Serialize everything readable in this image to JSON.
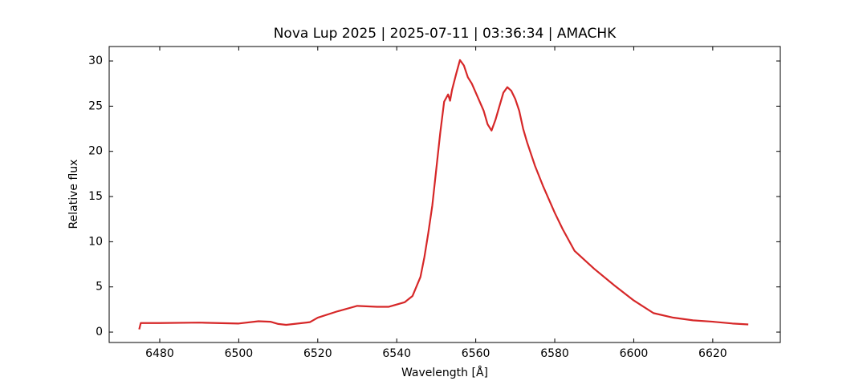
{
  "chart_data": {
    "type": "line",
    "title": "Nova Lup 2025 | 2025-07-11 | 03:36:34 | AMACHK",
    "x_label": "Wavelength [Å]",
    "y_label": "Relative flux",
    "x": [
      6474.8,
      6475.2,
      6480,
      6490,
      6500,
      6505,
      6508,
      6510,
      6512,
      6518,
      6520,
      6525,
      6530,
      6535,
      6538,
      6542,
      6544,
      6546,
      6547,
      6548,
      6549,
      6550,
      6551,
      6552,
      6553,
      6553.5,
      6554,
      6555,
      6556,
      6557,
      6558,
      6559,
      6560,
      6562,
      6563,
      6564,
      6565,
      6566,
      6567,
      6568,
      6569,
      6570,
      6571,
      6572,
      6573,
      6575,
      6577,
      6580,
      6582,
      6585,
      6590,
      6595,
      6600,
      6605,
      6610,
      6615,
      6620,
      6625,
      6629
    ],
    "values": [
      0.3,
      1.0,
      1.0,
      1.05,
      0.95,
      1.2,
      1.15,
      0.9,
      0.8,
      1.1,
      1.6,
      2.3,
      2.9,
      2.8,
      2.8,
      3.3,
      4.0,
      6.1,
      8.3,
      11.0,
      14.0,
      18.0,
      22.0,
      25.5,
      26.3,
      25.6,
      26.8,
      28.5,
      30.1,
      29.5,
      28.2,
      27.5,
      26.5,
      24.5,
      23.0,
      22.3,
      23.5,
      25.0,
      26.5,
      27.1,
      26.7,
      25.8,
      24.5,
      22.5,
      21.0,
      18.4,
      16.2,
      13.2,
      11.4,
      9.0,
      7.0,
      5.2,
      3.5,
      2.1,
      1.6,
      1.3,
      1.15,
      0.95,
      0.85
    ],
    "color": "#d62728",
    "xlim": [
      6467.2,
      6637.1
    ],
    "ylim": [
      -1.15,
      31.6
    ],
    "xticks": [
      6480,
      6500,
      6520,
      6540,
      6560,
      6580,
      6600,
      6620
    ],
    "yticks": [
      0,
      5,
      10,
      15,
      20,
      25,
      30
    ],
    "grid": false
  }
}
